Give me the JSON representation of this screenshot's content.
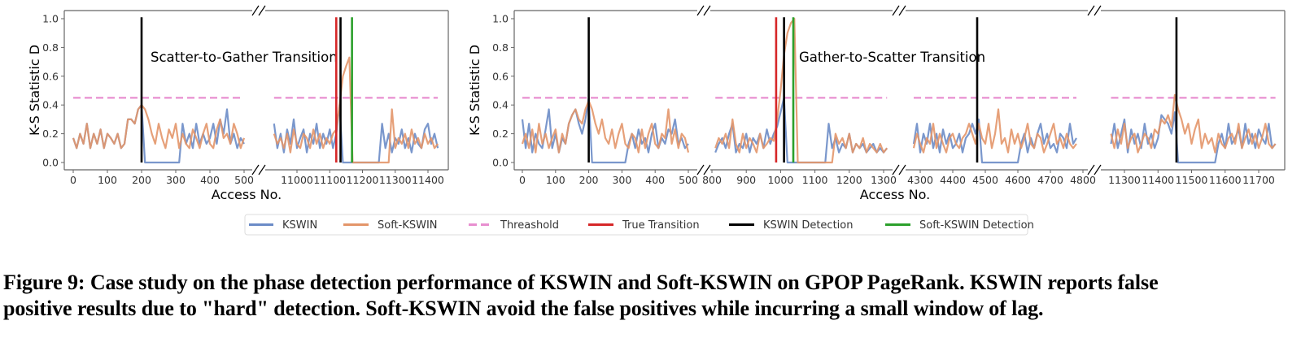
{
  "colors": {
    "kswin": "#6b8cc7",
    "soft_kswin": "#e3966a",
    "threshold": "#e88fd0",
    "true_transition": "#d62728",
    "kswin_detection": "#000000",
    "soft_kswin_detection": "#2ca02c",
    "axis": "#666666"
  },
  "legend": {
    "placement": "bottom-center",
    "items": [
      {
        "label": "KSWIN",
        "key": "kswin",
        "style": "solid"
      },
      {
        "label": "Soft-KSWIN",
        "key": "soft_kswin",
        "style": "solid"
      },
      {
        "label": "Threashold",
        "key": "threshold",
        "style": "dashed"
      },
      {
        "label": "True Transition",
        "key": "true_transition",
        "style": "solid"
      },
      {
        "label": "KSWIN Detection",
        "key": "kswin_detection",
        "style": "solid"
      },
      {
        "label": "Soft-KSWIN Detection",
        "key": "soft_kswin_detection",
        "style": "solid"
      }
    ]
  },
  "caption": {
    "line1": "Figure 9: Case study on the phase detection performance of KSWIN and Soft-KSWIN on GPOP PageRank. KSWIN reports false",
    "line2": "positive results due to \"hard\" detection. Soft-KSWIN avoid the false positives while incurring a small window of lag."
  },
  "chart_data": [
    {
      "type": "line",
      "annotation": "Scatter-to-Gather Transition",
      "xlabel": "Access No.",
      "ylabel": "K-S Statistic D",
      "ylim": [
        0,
        1.0
      ],
      "yticks": [
        "0.0",
        "0.2",
        "0.4",
        "0.6",
        "0.8",
        "1.0"
      ],
      "threshold": 0.45,
      "broken_x_axis": true,
      "segments": [
        {
          "xticks": [
            "0",
            "100",
            "200",
            "300",
            "400",
            "500"
          ],
          "x_start": 0,
          "x_step": 10,
          "series": [
            {
              "name": "KSWIN",
              "values": [
                0.17,
                0.1,
                0.2,
                0.13,
                0.27,
                0.1,
                0.2,
                0.13,
                0.23,
                0.1,
                0.2,
                0.17,
                0.13,
                0.2,
                0.1,
                0.13,
                0.3,
                0.3,
                0.27,
                0.37,
                0.4,
                0,
                0,
                0,
                0,
                0,
                0,
                0,
                0,
                0,
                0,
                0,
                0.27,
                0.13,
                0.2,
                0.1,
                0.27,
                0.13,
                0.2,
                0.13,
                0.17,
                0.27,
                0.13,
                0.3,
                0.2,
                0.37,
                0.13,
                0.2,
                0.1,
                0.17,
                0.13
              ]
            },
            {
              "name": "Soft-KSWIN",
              "values": [
                0.17,
                0.1,
                0.2,
                0.13,
                0.27,
                0.1,
                0.2,
                0.13,
                0.23,
                0.1,
                0.2,
                0.17,
                0.13,
                0.2,
                0.1,
                0.13,
                0.3,
                0.3,
                0.27,
                0.37,
                0.4,
                0.37,
                0.3,
                0.2,
                0.13,
                0.27,
                0.17,
                0.1,
                0.23,
                0.17,
                0.27,
                0.1,
                0.2,
                0.13,
                0.1,
                0.23,
                0.17,
                0.1,
                0.2,
                0.27,
                0.13,
                0.1,
                0.23,
                0.3,
                0.17,
                0.2,
                0.13,
                0.27,
                0.2,
                0.1,
                0.17
              ]
            }
          ],
          "events": [
            {
              "type": "kswin_detection",
              "x": 200
            }
          ]
        },
        {
          "xticks": [
            "11000",
            "11100",
            "11200",
            "11300",
            "11400"
          ],
          "x_start": 10930,
          "x_step": 10,
          "series": [
            {
              "name": "KSWIN",
              "values": [
                0.27,
                0.1,
                0.2,
                0.07,
                0.23,
                0.13,
                0.3,
                0.1,
                0.17,
                0.23,
                0.07,
                0.2,
                0.13,
                0.27,
                0.1,
                0.2,
                0.13,
                0.23,
                0.1,
                0.2,
                0.4,
                0,
                0,
                0,
                0,
                0,
                0,
                0,
                0,
                0,
                0,
                0,
                0,
                0.27,
                0.1,
                0.2,
                0.07,
                0.17,
                0.13,
                0.23,
                0.1,
                0.17,
                0.07,
                0.2,
                0.13,
                0.1,
                0.23,
                0.27,
                0.13,
                0.2,
                0.1
              ]
            },
            {
              "name": "Soft-KSWIN",
              "values": [
                0.2,
                0.13,
                0.17,
                0.1,
                0.2,
                0.07,
                0.23,
                0.13,
                0.1,
                0.2,
                0.17,
                0.1,
                0.23,
                0.13,
                0.2,
                0.1,
                0.17,
                0.13,
                0.2,
                0.23,
                0.4,
                0.6,
                0.67,
                0.73,
                0,
                0,
                0,
                0,
                0,
                0,
                0,
                0,
                0,
                0,
                0,
                0,
                0.37,
                0.1,
                0.17,
                0.13,
                0.2,
                0.1,
                0.23,
                0.13,
                0.17,
                0.1,
                0.2,
                0.13,
                0.17,
                0.1,
                0.13
              ]
            }
          ],
          "events": [
            {
              "type": "true_transition",
              "x": 11120
            },
            {
              "type": "kswin_detection",
              "x": 11133
            },
            {
              "type": "soft_kswin_detection",
              "x": 11168
            }
          ]
        }
      ]
    },
    {
      "type": "line",
      "annotation": "Gather-to-Scatter Transition",
      "xlabel": "Access No.",
      "ylabel": "K-S Statistic D",
      "ylim": [
        0,
        1.0
      ],
      "yticks": [
        "0.0",
        "0.2",
        "0.4",
        "0.6",
        "0.8",
        "1.0"
      ],
      "threshold": 0.45,
      "broken_x_axis": true,
      "segments": [
        {
          "xticks": [
            "0",
            "100",
            "200",
            "300",
            "400",
            "500"
          ],
          "x_start": 0,
          "x_step": 10,
          "series": [
            {
              "name": "KSWIN",
              "values": [
                0.3,
                0.1,
                0.27,
                0.07,
                0.2,
                0.13,
                0.1,
                0.23,
                0.37,
                0.1,
                0.2,
                0.07,
                0.17,
                0.13,
                0.27,
                0.33,
                0.37,
                0.27,
                0.2,
                0.3,
                0.45,
                0,
                0,
                0,
                0,
                0,
                0,
                0,
                0,
                0,
                0,
                0,
                0.13,
                0.2,
                0.1,
                0.23,
                0.13,
                0.17,
                0.07,
                0.2,
                0.27,
                0.1,
                0.17,
                0.13,
                0.23,
                0.2,
                0.3,
                0.13,
                0.17,
                0.1,
                0.13
              ]
            },
            {
              "name": "Soft-KSWIN",
              "values": [
                0.13,
                0.2,
                0.1,
                0.23,
                0.07,
                0.27,
                0.13,
                0.2,
                0.1,
                0.17,
                0.23,
                0.07,
                0.2,
                0.13,
                0.27,
                0.33,
                0.37,
                0.3,
                0.27,
                0.37,
                0.43,
                0.37,
                0.27,
                0.2,
                0.3,
                0.17,
                0.13,
                0.23,
                0.1,
                0.2,
                0.27,
                0.13,
                0.1,
                0.2,
                0.17,
                0.07,
                0.23,
                0.1,
                0.2,
                0.27,
                0.13,
                0.1,
                0.2,
                0.17,
                0.37,
                0.13,
                0.23,
                0.1,
                0.2,
                0.17,
                0.07
              ]
            }
          ],
          "events": [
            {
              "type": "kswin_detection",
              "x": 200
            }
          ]
        },
        {
          "xticks": [
            "800",
            "900",
            "1000",
            "1100",
            "1200",
            "1300"
          ],
          "x_start": 810,
          "x_step": 10,
          "series": [
            {
              "name": "KSWIN",
              "values": [
                0.07,
                0.13,
                0.17,
                0.1,
                0.2,
                0.27,
                0.07,
                0.13,
                0.1,
                0.2,
                0.07,
                0.17,
                0.13,
                0.2,
                0.1,
                0.23,
                0.13,
                0.2,
                0.25,
                0.35,
                0.45,
                0,
                0,
                0,
                0,
                0,
                0,
                0,
                0,
                0,
                0,
                0,
                0,
                0.27,
                0.1,
                0.17,
                0.07,
                0.13,
                0.1,
                0.2,
                0.07,
                0.13,
                0.1,
                0.13,
                0.07,
                0.1,
                0.13,
                0.07,
                0.1,
                0.07,
                0.1
              ]
            },
            {
              "name": "Soft-KSWIN",
              "values": [
                0.1,
                0.17,
                0.13,
                0.2,
                0.1,
                0.3,
                0.13,
                0.07,
                0.2,
                0.1,
                0.17,
                0.13,
                0.07,
                0.2,
                0.1,
                0.13,
                0.17,
                0.15,
                0.3,
                0.5,
                0.75,
                0.9,
                0.97,
                1.0,
                0,
                0,
                0,
                0,
                0,
                0,
                0,
                0,
                0,
                0,
                0,
                0.2,
                0.13,
                0.17,
                0.1,
                0.2,
                0.07,
                0.13,
                0.1,
                0.17,
                0.07,
                0.13,
                0.1,
                0.07,
                0.13,
                0.07,
                0.1
              ]
            }
          ],
          "events": [
            {
              "type": "true_transition",
              "x": 987
            },
            {
              "type": "kswin_detection",
              "x": 1010
            },
            {
              "type": "soft_kswin_detection",
              "x": 1037
            }
          ]
        },
        {
          "xticks": [
            "4300",
            "4400",
            "4500",
            "4600",
            "4700",
            "4800"
          ],
          "x_start": 4280,
          "x_step": 10,
          "series": [
            {
              "name": "KSWIN",
              "values": [
                0.13,
                0.27,
                0.07,
                0.2,
                0.13,
                0.27,
                0.1,
                0.2,
                0.07,
                0.23,
                0.13,
                0.2,
                0.1,
                0.13,
                0.2,
                0.07,
                0.17,
                0.2,
                0.27,
                0.2,
                0.3,
                0,
                0,
                0,
                0,
                0,
                0,
                0,
                0,
                0,
                0,
                0,
                0,
                0.13,
                0.2,
                0.07,
                0.17,
                0.1,
                0.2,
                0.27,
                0.13,
                0.2,
                0.1,
                0.13,
                0.07,
                0.2,
                0.17,
                0.1,
                0.27,
                0.13,
                0.17
              ]
            },
            {
              "name": "Soft-KSWIN",
              "values": [
                0.1,
                0.2,
                0.13,
                0.07,
                0.17,
                0.13,
                0.27,
                0.1,
                0.2,
                0.13,
                0.07,
                0.17,
                0.2,
                0.13,
                0.1,
                0.17,
                0.2,
                0.27,
                0.2,
                0.13,
                0.27,
                0.17,
                0.13,
                0.27,
                0.1,
                0.2,
                0.37,
                0.13,
                0.17,
                0.07,
                0.23,
                0.13,
                0.2,
                0.1,
                0.17,
                0.27,
                0.13,
                0.1,
                0.2,
                0.17,
                0.07,
                0.13,
                0.2,
                0.27,
                0.13,
                0.17,
                0.1,
                0.2,
                0.13,
                0.1,
                0.13
              ]
            }
          ],
          "events": [
            {
              "type": "kswin_detection",
              "x": 4475
            }
          ]
        },
        {
          "xticks": [
            "11300",
            "11400",
            "11500",
            "11600",
            "11700"
          ],
          "x_start": 11260,
          "x_step": 10,
          "series": [
            {
              "name": "KSWIN",
              "values": [
                0.13,
                0.27,
                0.1,
                0.2,
                0.3,
                0.07,
                0.23,
                0.13,
                0.2,
                0.1,
                0.27,
                0.13,
                0.2,
                0.1,
                0.17,
                0.33,
                0.3,
                0.27,
                0.2,
                0.35,
                0,
                0,
                0,
                0,
                0,
                0,
                0,
                0,
                0,
                0,
                0,
                0,
                0.13,
                0.2,
                0.1,
                0.27,
                0.13,
                0.17,
                0.23,
                0.1,
                0.27,
                0.13,
                0.2,
                0.1,
                0.23,
                0.17,
                0.13,
                0.27,
                0.1,
                0.13
              ]
            },
            {
              "name": "Soft-KSWIN",
              "values": [
                0.2,
                0.1,
                0.23,
                0.13,
                0.27,
                0.1,
                0.17,
                0.2,
                0.07,
                0.13,
                0.2,
                0.17,
                0.1,
                0.23,
                0.2,
                0.3,
                0.27,
                0.33,
                0.25,
                0.47,
                0.37,
                0.3,
                0.2,
                0.27,
                0.13,
                0.23,
                0.3,
                0.1,
                0.2,
                0.13,
                0.17,
                0.07,
                0.2,
                0.13,
                0.1,
                0.17,
                0.2,
                0.13,
                0.27,
                0.1,
                0.17,
                0.23,
                0.13,
                0.2,
                0.1,
                0.17,
                0.27,
                0.13,
                0.1,
                0.13
              ]
            }
          ],
          "events": [
            {
              "type": "kswin_detection",
              "x": 11455
            }
          ]
        }
      ]
    }
  ]
}
